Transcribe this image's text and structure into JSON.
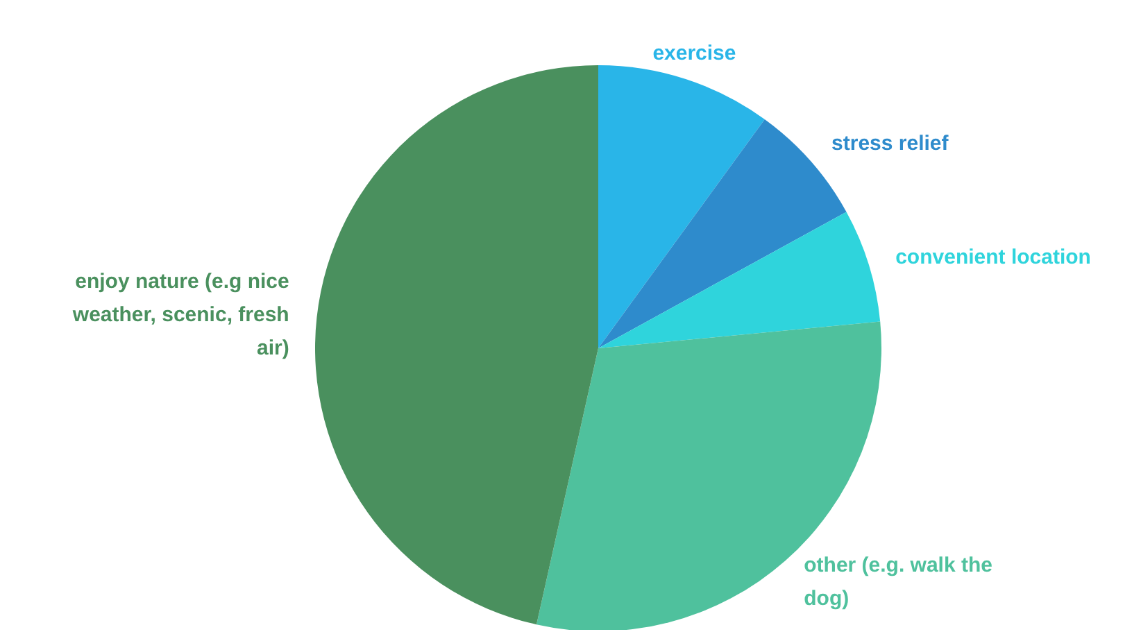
{
  "chart_data": {
    "type": "pie",
    "categories": [
      "exercise",
      "stress relief",
      "convenient location",
      "other (e.g. walk the dog)",
      "enjoy nature (e.g nice weather, scenic, fresh air)"
    ],
    "values": [
      10,
      7,
      6.5,
      30,
      46.5
    ],
    "colors": [
      "#29b5e8",
      "#2e8bcc",
      "#2fd4dc",
      "#4fc19d",
      "#4a905e"
    ]
  }
}
